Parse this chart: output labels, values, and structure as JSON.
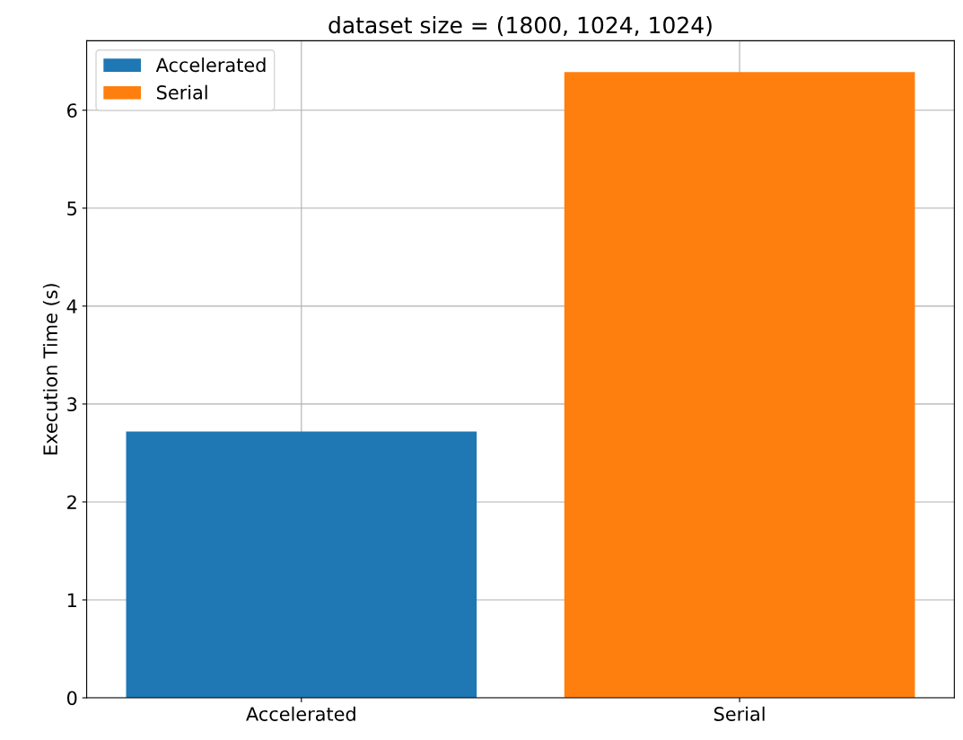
{
  "chart_data": {
    "type": "bar",
    "title": "dataset size = (1800, 1024, 1024)",
    "ylabel": "Execution Time (s)",
    "categories": [
      "Accelerated",
      "Serial"
    ],
    "series": [
      {
        "name": "Accelerated",
        "color": "#1f77b4",
        "values": [
          2.72,
          null
        ]
      },
      {
        "name": "Serial",
        "color": "#ff7f0e",
        "values": [
          null,
          6.39
        ]
      }
    ],
    "ylim": [
      0,
      6.71
    ],
    "yticks": [
      0,
      1,
      2,
      3,
      4,
      5,
      6
    ],
    "grid": true,
    "legend": "top left"
  }
}
